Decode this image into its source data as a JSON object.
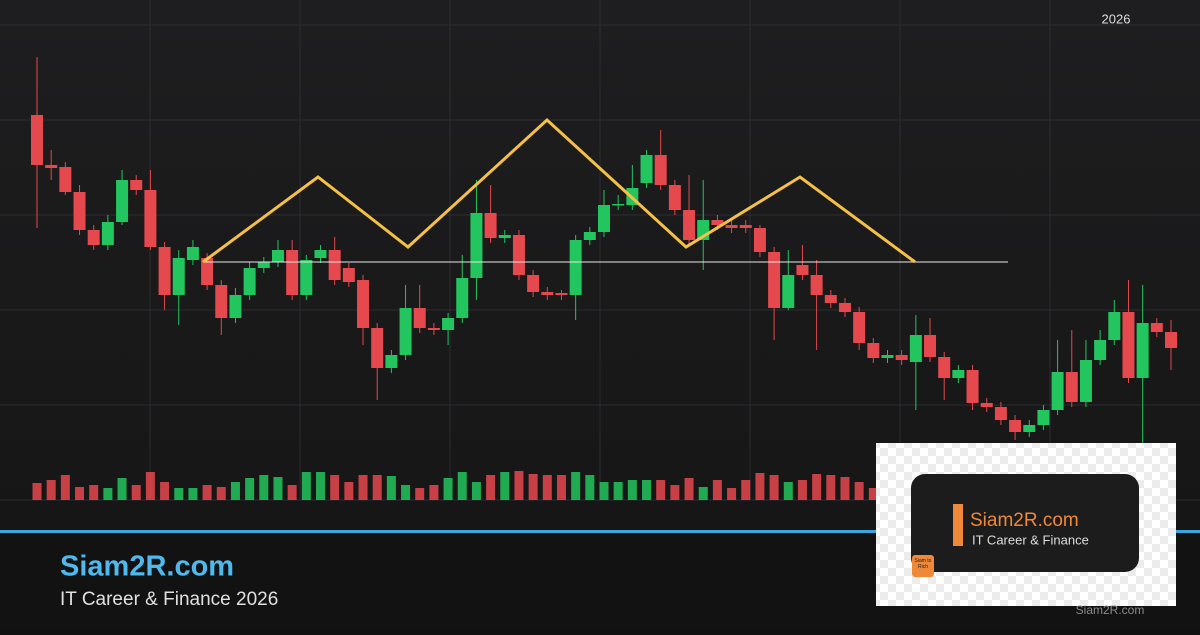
{
  "chart_data": {
    "type": "candlestick",
    "ylim": [
      0,
      475
    ],
    "grid": true,
    "up_color": "#22c55e",
    "down_color": "#e5484d",
    "open": [
      385,
      335,
      333,
      308,
      270,
      255,
      278,
      320,
      310,
      253,
      205,
      240,
      242,
      215,
      182,
      205,
      232,
      238,
      250,
      205,
      242,
      250,
      232,
      220,
      172,
      132,
      145,
      192,
      172,
      170,
      182,
      222,
      287,
      262,
      265,
      225,
      208,
      207,
      205,
      260,
      268,
      295,
      295,
      317,
      345,
      315,
      290,
      260,
      280,
      275,
      275,
      272,
      248,
      192,
      235,
      225,
      205,
      197,
      188,
      157,
      142,
      145,
      138,
      165,
      143,
      122,
      130,
      97,
      93,
      80,
      68,
      75,
      90,
      128,
      98,
      140,
      160,
      188,
      122,
      177,
      168
    ],
    "high": [
      443,
      350,
      338,
      315,
      275,
      285,
      330,
      325,
      330,
      258,
      250,
      260,
      247,
      220,
      212,
      238,
      243,
      260,
      260,
      245,
      255,
      263,
      237,
      225,
      177,
      150,
      215,
      215,
      177,
      187,
      245,
      320,
      315,
      270,
      270,
      230,
      213,
      210,
      265,
      273,
      310,
      305,
      335,
      350,
      370,
      320,
      325,
      320,
      285,
      280,
      280,
      275,
      253,
      250,
      255,
      240,
      210,
      202,
      193,
      162,
      150,
      150,
      185,
      182,
      148,
      135,
      135,
      102,
      98,
      85,
      80,
      95,
      160,
      170,
      160,
      170,
      200,
      220,
      215,
      182,
      180
    ],
    "low": [
      272,
      320,
      305,
      265,
      250,
      250,
      275,
      305,
      250,
      190,
      175,
      235,
      210,
      165,
      177,
      200,
      227,
      233,
      200,
      200,
      237,
      215,
      213,
      155,
      100,
      127,
      140,
      167,
      165,
      155,
      177,
      200,
      257,
      257,
      220,
      203,
      200,
      200,
      180,
      255,
      263,
      290,
      290,
      312,
      310,
      285,
      255,
      230,
      270,
      267,
      267,
      243,
      160,
      190,
      220,
      150,
      192,
      183,
      150,
      137,
      137,
      135,
      90,
      138,
      100,
      117,
      90,
      88,
      75,
      60,
      63,
      70,
      85,
      93,
      93,
      135,
      155,
      117,
      30,
      163,
      130
    ],
    "close": [
      335,
      332,
      308,
      270,
      255,
      278,
      320,
      310,
      253,
      205,
      242,
      253,
      215,
      182,
      205,
      232,
      238,
      250,
      205,
      240,
      250,
      220,
      218,
      172,
      132,
      145,
      192,
      172,
      170,
      182,
      222,
      287,
      262,
      265,
      225,
      208,
      205,
      205,
      260,
      268,
      295,
      296,
      312,
      345,
      315,
      290,
      260,
      280,
      275,
      272,
      272,
      248,
      192,
      225,
      225,
      205,
      197,
      188,
      157,
      142,
      145,
      140,
      165,
      143,
      122,
      130,
      97,
      93,
      80,
      68,
      75,
      90,
      128,
      98,
      140,
      160,
      188,
      122,
      177,
      168,
      152
    ],
    "volume_lim": [
      0,
      40
    ],
    "volume": [
      17,
      20,
      25,
      13,
      15,
      12,
      22,
      15,
      28,
      18,
      12,
      12,
      15,
      13,
      18,
      22,
      25,
      23,
      15,
      28,
      28,
      25,
      18,
      25,
      25,
      24,
      15,
      12,
      15,
      22,
      28,
      18,
      25,
      28,
      29,
      26,
      25,
      25,
      28,
      25,
      18,
      18,
      20,
      20,
      20,
      15,
      22,
      13,
      20,
      12,
      20,
      27,
      25,
      18,
      20,
      26,
      25,
      23,
      18,
      12,
      20,
      22,
      18,
      24,
      20,
      15,
      22,
      18,
      20,
      16,
      24,
      22,
      20,
      18,
      25,
      22,
      20,
      18,
      24,
      20,
      18
    ],
    "corner_label": "2026"
  },
  "branding": {
    "title": "Siam2R.com",
    "subtitle": "IT Career & Finance 2026",
    "card_title": "Siam2R.com",
    "card_subtitle": "IT Career & Finance",
    "icon_text": "Siam to Rich",
    "watermark": "Siam2R.com"
  }
}
